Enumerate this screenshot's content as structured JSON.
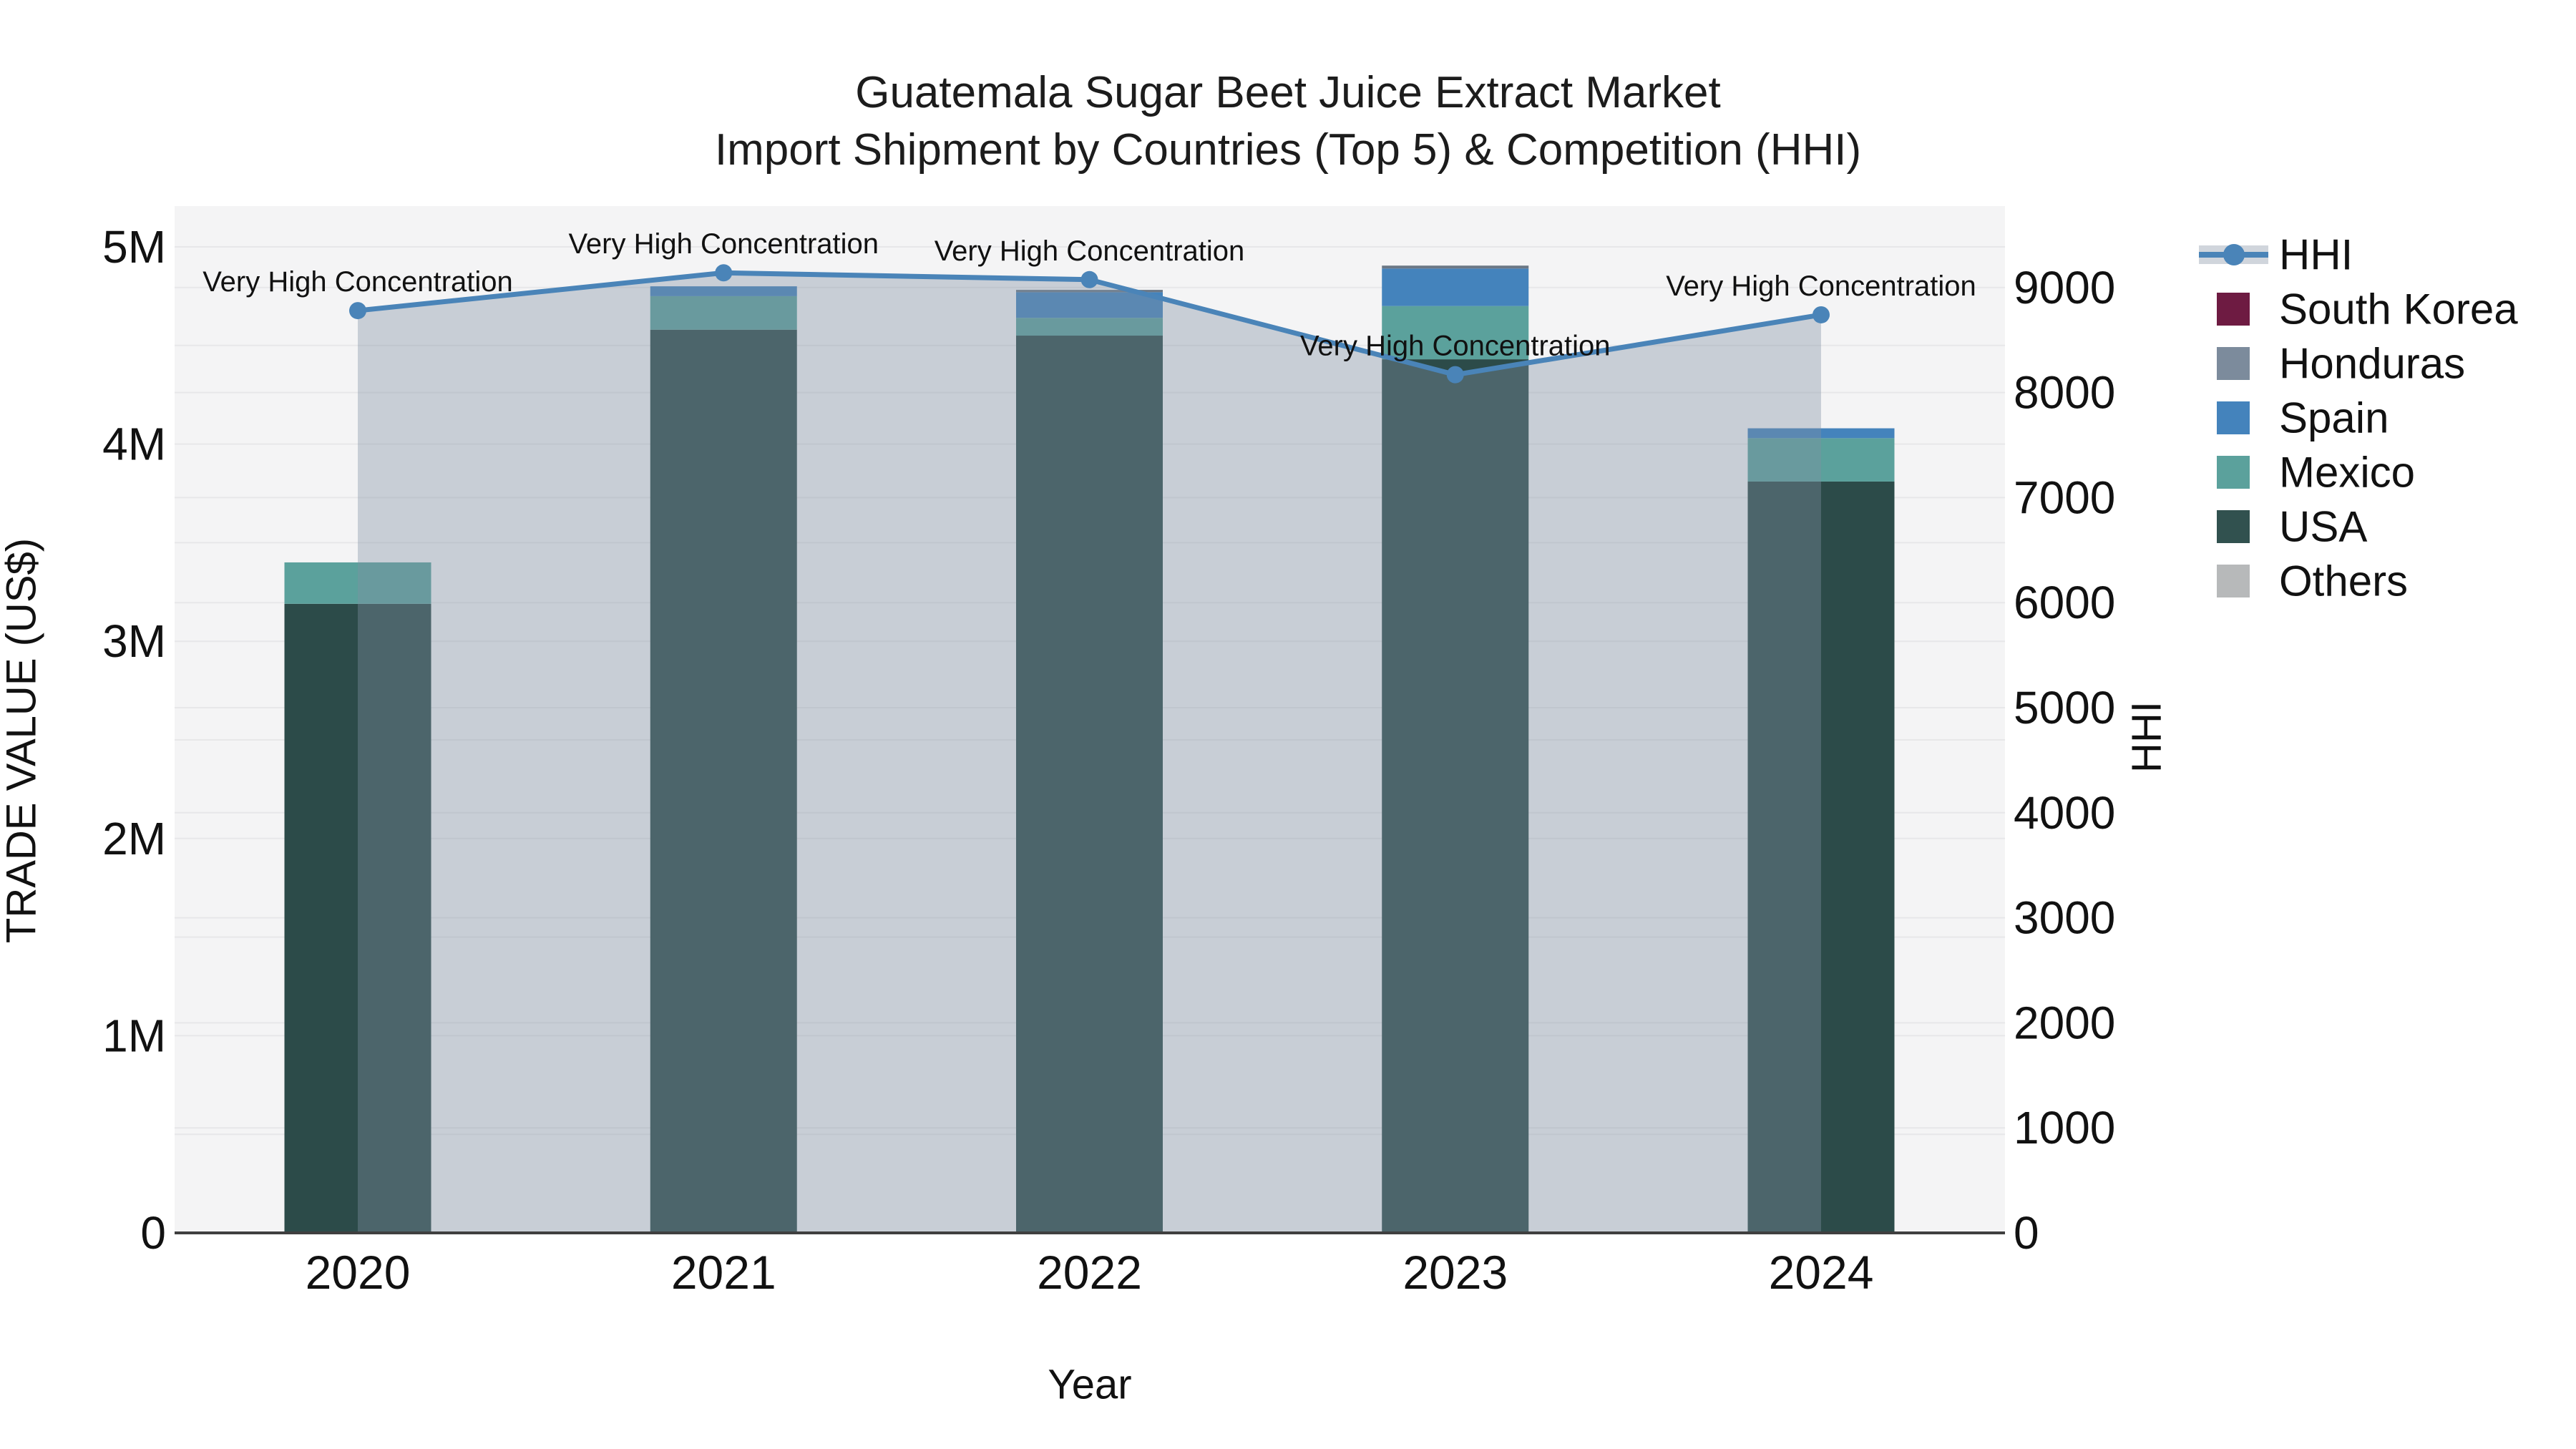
{
  "title": {
    "line1": "Guatemala Sugar Beet Juice Extract Market",
    "line2": "Import Shipment by Countries (Top 5) & Competition (HHI)"
  },
  "axes": {
    "left_title": "TRADE VALUE (US$)",
    "right_title": "HHI",
    "x_title": "Year",
    "left_ticks": [
      "0",
      "1M",
      "2M",
      "3M",
      "4M",
      "5M"
    ],
    "right_ticks": [
      "0",
      "1000",
      "2000",
      "3000",
      "4000",
      "5000",
      "6000",
      "7000",
      "8000",
      "9000"
    ]
  },
  "chart_data": {
    "type": "bar+line",
    "title": "Guatemala Sugar Beet Juice Extract Market Import Shipment by Countries (Top 5) & Competition (HHI)",
    "xlabel": "Year",
    "ylabel": "TRADE VALUE (US$)",
    "ylabel_right": "HHI",
    "categories": [
      "2020",
      "2021",
      "2022",
      "2023",
      "2024"
    ],
    "ylim_left": [
      0,
      5000000
    ],
    "ylim_right": [
      0,
      9000
    ],
    "grid": true,
    "legend_position": "right",
    "bar_stack_order_note": "bottom to top: USA, Mexico, Spain, Honduras, South Korea, Others",
    "series": [
      {
        "name": "USA",
        "type": "bar",
        "color": "#2C4B49",
        "values": [
          3190000,
          4580000,
          4550000,
          4430000,
          3810000
        ]
      },
      {
        "name": "Mexico",
        "type": "bar",
        "color": "#5BA19C",
        "values": [
          210000,
          170000,
          90000,
          270000,
          220000
        ]
      },
      {
        "name": "Spain",
        "type": "bar",
        "color": "#4483BC",
        "values": [
          0,
          50000,
          130000,
          190000,
          50000
        ]
      },
      {
        "name": "Honduras",
        "type": "bar",
        "color": "#6B7886",
        "values": [
          0,
          0,
          12000,
          15000,
          0
        ]
      },
      {
        "name": "South Korea",
        "type": "bar",
        "color": "#6E1B42",
        "values": [
          0,
          0,
          0,
          0,
          0
        ]
      },
      {
        "name": "Others",
        "type": "bar",
        "color": "#B7B9BA",
        "values": [
          0,
          0,
          0,
          0,
          0
        ]
      }
    ],
    "line_series": {
      "name": "HHI",
      "axis": "right",
      "color": "#4A84B8",
      "fill_color": "rgba(130,144,163,0.38)",
      "values": [
        8780,
        9140,
        9075,
        8170,
        8740
      ]
    },
    "annotations": [
      {
        "x": "2020",
        "text": "Very High Concentration"
      },
      {
        "x": "2021",
        "text": "Very High Concentration"
      },
      {
        "x": "2022",
        "text": "Very High Concentration"
      },
      {
        "x": "2023",
        "text": "Very High Concentration"
      },
      {
        "x": "2024",
        "text": "Very High Concentration"
      }
    ]
  },
  "legend": {
    "items": [
      {
        "label": "HHI",
        "glyph": "line-marker",
        "color": "#4A84B8",
        "band_color": "#D0D5DC"
      },
      {
        "label": "South Korea",
        "glyph": "square",
        "color": "#6E1B42"
      },
      {
        "label": "Honduras",
        "glyph": "square",
        "color": "#7C8B9C"
      },
      {
        "label": "Spain",
        "glyph": "square",
        "color": "#4483BC"
      },
      {
        "label": "Mexico",
        "glyph": "square",
        "color": "#5BA19C"
      },
      {
        "label": "USA",
        "glyph": "square",
        "color": "#31514F"
      },
      {
        "label": "Others",
        "glyph": "square",
        "color": "#B7B9BA"
      }
    ]
  },
  "colors": {
    "plot_bg": "#f4f4f5",
    "gridline": "#e7e7e9",
    "axis_line": "#3f3f3f",
    "text": "#111111"
  }
}
